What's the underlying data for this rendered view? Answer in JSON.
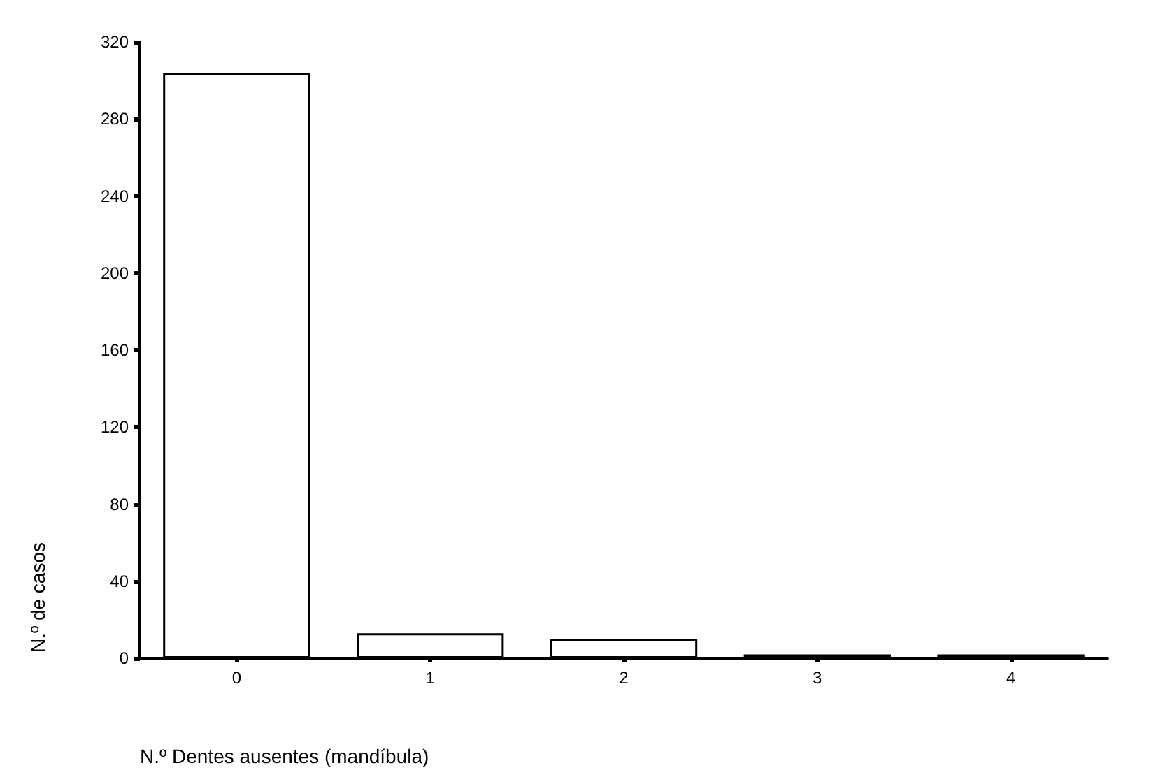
{
  "chart_data": {
    "type": "bar",
    "xlabel": "N.º Dentes ausentes (mandíbula)",
    "ylabel": "N.º de casos",
    "categories": [
      "0",
      "1",
      "2",
      "3",
      "4"
    ],
    "values": [
      304,
      13,
      10,
      2,
      2
    ],
    "color": "#ffffff",
    "ylim": [
      0,
      320
    ],
    "yticks": [
      0,
      40,
      80,
      120,
      160,
      200,
      240,
      280,
      320
    ],
    "grid": false
  }
}
